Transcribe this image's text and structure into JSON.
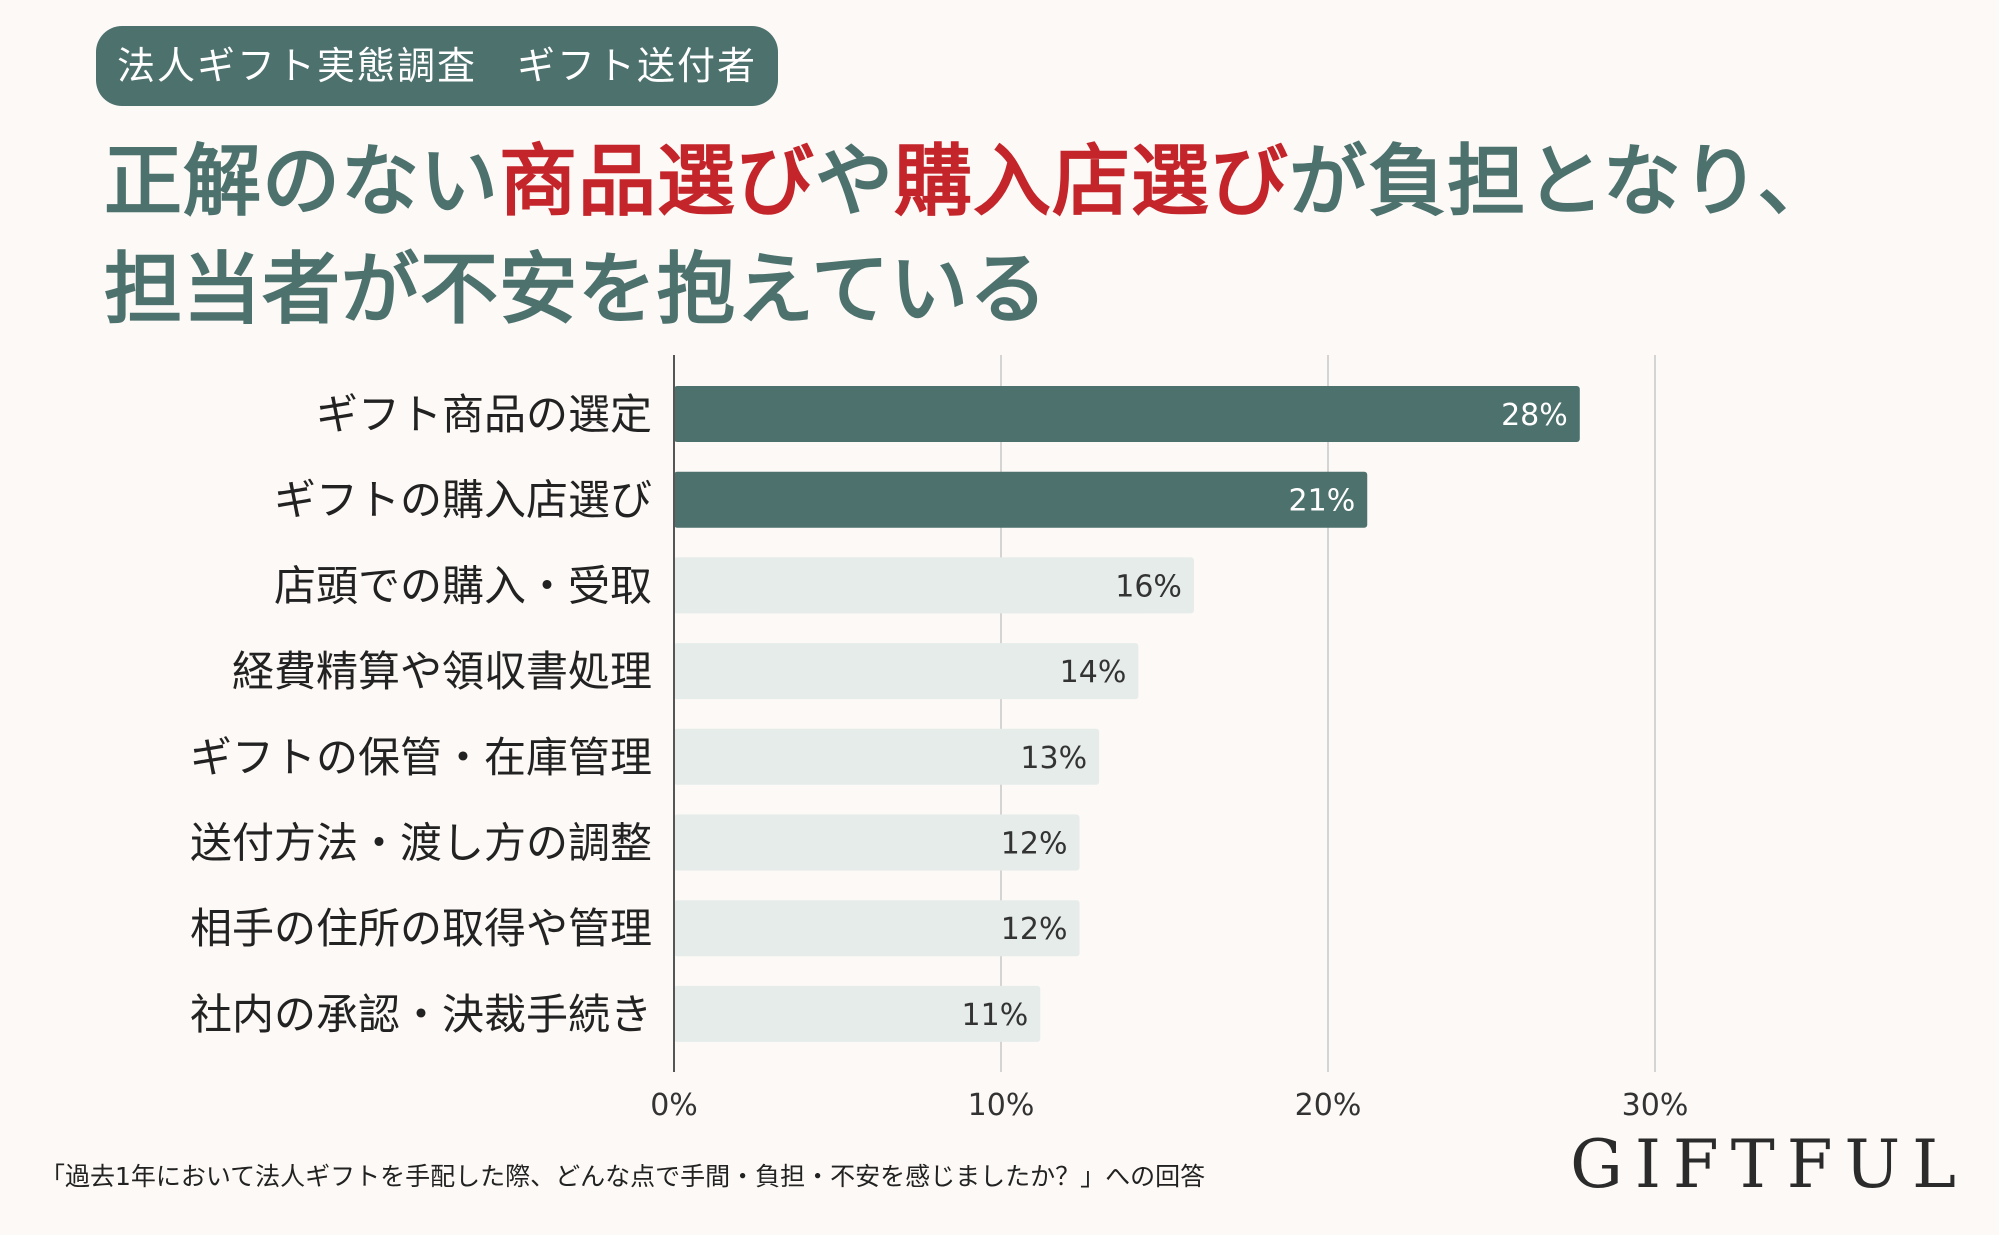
{
  "badge": "法人ギフト実態調査　ギフト送付者",
  "headline": {
    "line1_pre": "正解のない",
    "line1_hl1": "商品選び",
    "line1_mid": "や",
    "line1_hl2": "購入店選び",
    "line1_post": "が負担となり、",
    "line2": "担当者が不安を抱えている"
  },
  "colors": {
    "primary": "#4d716d",
    "highlight": "#c4252a",
    "bar_top": "#4d716d",
    "bar_other": "#e5ecea",
    "background": "#fcf9f6"
  },
  "chart_data": {
    "type": "bar",
    "orientation": "horizontal",
    "categories": [
      "ギフト商品の選定",
      "ギフトの購入店選び",
      "店頭での購入・受取",
      "経費精算や領収書処理",
      "ギフトの保管・在庫管理",
      "送付方法・渡し方の調整",
      "相手の住所の取得や管理",
      "社内の承認・決裁手続き"
    ],
    "values": [
      27.7,
      21.2,
      15.9,
      14.2,
      13.0,
      12.4,
      12.4,
      11.2
    ],
    "value_labels": [
      "28%",
      "21%",
      "16%",
      "14%",
      "13%",
      "12%",
      "12%",
      "11%"
    ],
    "highlighted": [
      true,
      true,
      false,
      false,
      false,
      false,
      false,
      false
    ],
    "xlim": [
      0,
      30
    ],
    "x_ticks": [
      "0%",
      "10%",
      "20%",
      "30%"
    ],
    "grid": true,
    "xlabel": "",
    "ylabel": ""
  },
  "footnote": "「過去1年において法人ギフトを手配した際、どんな点で手間・負担・不安を感じましたか？」への回答",
  "logo": "GIFTFUL"
}
